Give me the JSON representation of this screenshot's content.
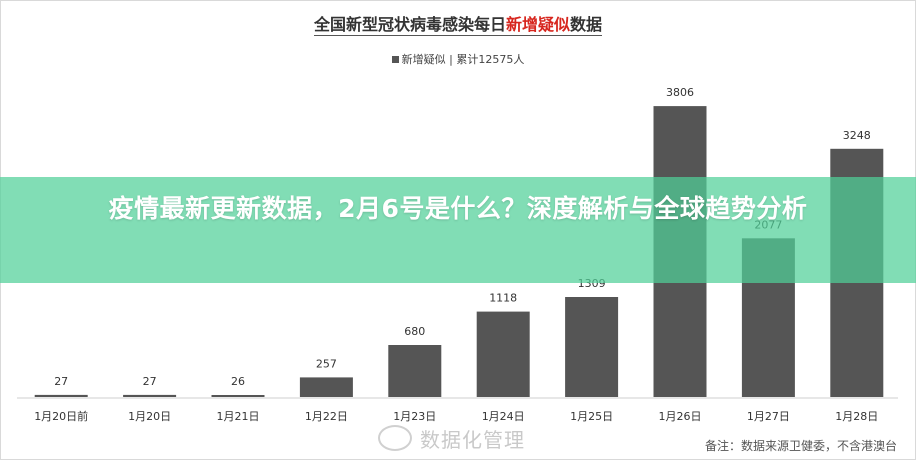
{
  "chart_data": {
    "type": "bar",
    "title_parts": [
      "全国新型冠状病毒感染每日",
      "新增疑似",
      "数据"
    ],
    "legend": "新增疑似 | 累计12575人",
    "categories": [
      "1月20日前",
      "1月20日",
      "1月21日",
      "1月22日",
      "1月23日",
      "1月24日",
      "1月25日",
      "1月26日",
      "1月27日",
      "1月28日"
    ],
    "series": [
      {
        "name": "新增疑似",
        "values": [
          27,
          27,
          26,
          257,
          680,
          1118,
          1309,
          3806,
          2077,
          3248
        ]
      }
    ],
    "value_labels": [
      "27",
      "27",
      "26",
      "257",
      "680",
      "1118",
      "1309",
      "3806",
      "2077",
      "3248"
    ],
    "ylim": [
      0,
      4200
    ],
    "grid": false,
    "legend_position": "top-center",
    "bar_color": "#555555",
    "highlight_color": "#d7261e"
  },
  "banner": {
    "headline": "疫情最新更新数据，2月6号是什么？深度解析与全球趋势分析",
    "color": "#50d099"
  },
  "watermark": "数据化管理",
  "note": "备注：数据来源卫健委，不含港澳台"
}
